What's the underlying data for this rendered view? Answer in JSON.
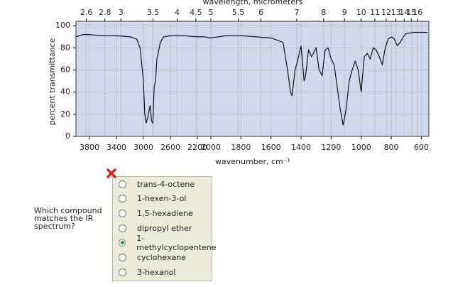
{
  "chart_data": {
    "type": "line",
    "x2label": "wavelength, micrometers",
    "xlabel": "wavenumber, cm⁻¹",
    "ylabel": "percent transmittance",
    "xlim": [
      4000,
      550
    ],
    "x_break": 2000,
    "xticks": [
      3800,
      3400,
      3000,
      2600,
      2200,
      2000,
      1800,
      1600,
      1400,
      1200,
      1000,
      800,
      600
    ],
    "x2ticks": [
      2.6,
      2.8,
      3,
      3.5,
      4,
      4.5,
      5,
      5.5,
      6,
      7,
      8,
      9,
      10,
      11,
      12,
      13,
      14,
      15,
      16
    ],
    "ylim": [
      0,
      104
    ],
    "yticks": [
      0,
      20,
      40,
      60,
      80,
      100
    ],
    "grid": true,
    "background": "#cfd8ec",
    "color": "#000000",
    "x": [
      4000,
      3900,
      3800,
      3600,
      3400,
      3200,
      3100,
      3050,
      3000,
      2980,
      2960,
      2940,
      2920,
      2900,
      2880,
      2860,
      2840,
      2820,
      2800,
      2750,
      2700,
      2600,
      2400,
      2200,
      2100,
      2000,
      1900,
      1800,
      1700,
      1600,
      1520,
      1490,
      1470,
      1460,
      1440,
      1420,
      1400,
      1380,
      1370,
      1350,
      1330,
      1300,
      1280,
      1260,
      1240,
      1220,
      1200,
      1180,
      1160,
      1140,
      1120,
      1100,
      1080,
      1060,
      1040,
      1020,
      1000,
      980,
      960,
      940,
      920,
      900,
      880,
      860,
      840,
      820,
      800,
      780,
      760,
      740,
      720,
      700,
      650,
      600,
      560
    ],
    "values": [
      90,
      92,
      92,
      91,
      91,
      90,
      88,
      80,
      50,
      20,
      12,
      16,
      22,
      28,
      14,
      12,
      45,
      50,
      70,
      85,
      90,
      91,
      91,
      90,
      90,
      89,
      91,
      91,
      90,
      89,
      85,
      60,
      40,
      37,
      60,
      70,
      82,
      50,
      55,
      78,
      72,
      80,
      60,
      55,
      78,
      80,
      70,
      65,
      45,
      25,
      10,
      25,
      50,
      60,
      68,
      60,
      40,
      72,
      75,
      70,
      80,
      78,
      72,
      65,
      80,
      88,
      90,
      88,
      82,
      85,
      90,
      93,
      94,
      94,
      94
    ]
  },
  "question": [
    "Which compound",
    "matches the IR",
    "spectrum?"
  ],
  "options": [
    "trans-4-octene",
    "1-hexen-3-ol",
    "1,5-hexadiene",
    "dipropyl ether",
    "1-methylcyclopentene",
    "cyclohexane",
    "3-hexanol"
  ],
  "selected": 4
}
